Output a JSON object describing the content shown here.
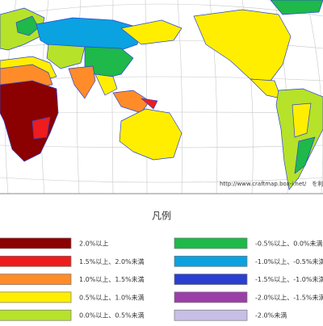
{
  "credit": "http://www.craftmap.box-i.net/　を利用",
  "legend": {
    "title": "凡例",
    "items": [
      {
        "label": "2.0%以上",
        "color": "#8b0000"
      },
      {
        "label": "1.5%以上、2.0%未満",
        "color": "#ee1c1c"
      },
      {
        "label": "1.0%以上、1.5%未満",
        "color": "#ff8c28"
      },
      {
        "label": "0.5%以上、1.0%未満",
        "color": "#ffee00"
      },
      {
        "label": "0.0%以上、0.5%未満",
        "color": "#b6e22a"
      },
      {
        "label": "-0.5%以上、0.0%未満",
        "color": "#1fb84a"
      },
      {
        "label": "-1.0%以上、-0.5%未満",
        "color": "#0aa2e0"
      },
      {
        "label": "-1.5%以上、-1.0%未満",
        "color": "#2a3fd0"
      },
      {
        "label": "-2.0%以上、-1.5%未満",
        "color": "#9b3fa8"
      },
      {
        "label": "-2.0%未満",
        "color": "#c8bfe6"
      }
    ]
  }
}
